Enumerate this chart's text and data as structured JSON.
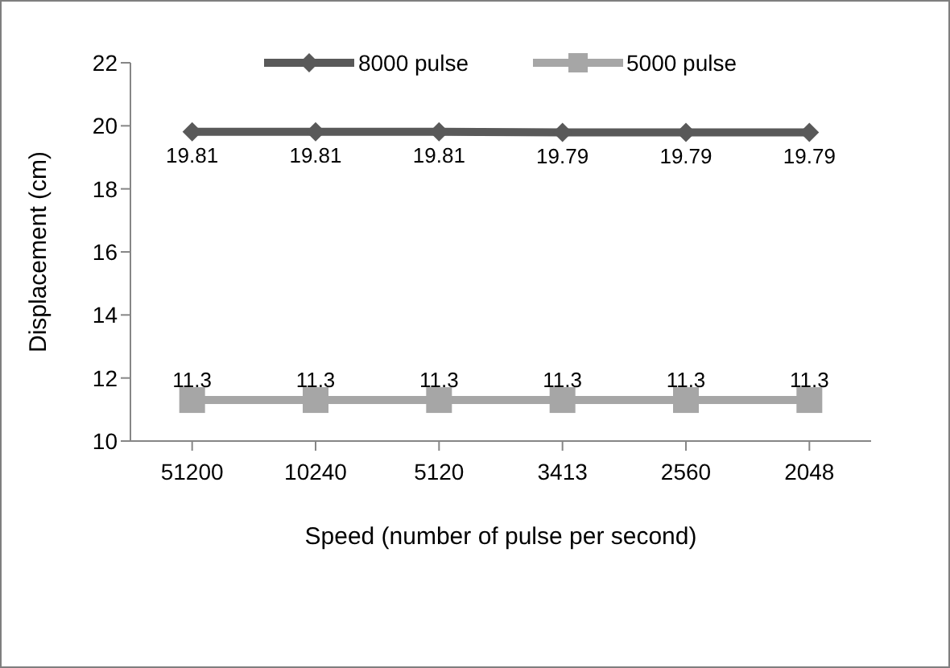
{
  "chart_data": {
    "type": "line",
    "xlabel": "Speed (number of pulse per second)",
    "ylabel": "Displacement (cm)",
    "categories": [
      "51200",
      "10240",
      "5120",
      "3413",
      "2560",
      "2048"
    ],
    "series": [
      {
        "name": "8000 pulse",
        "color": "#595959",
        "marker": "diamond",
        "values": [
          19.81,
          19.81,
          19.81,
          19.79,
          19.79,
          19.79
        ]
      },
      {
        "name": "5000 pulse",
        "color": "#a6a6a6",
        "marker": "square",
        "values": [
          11.3,
          11.3,
          11.3,
          11.3,
          11.3,
          11.3
        ]
      }
    ],
    "ylim": [
      10,
      22
    ],
    "yticks": [
      10,
      12,
      14,
      16,
      18,
      20,
      22
    ],
    "grid": false,
    "legend": "top",
    "data_labels": true
  }
}
